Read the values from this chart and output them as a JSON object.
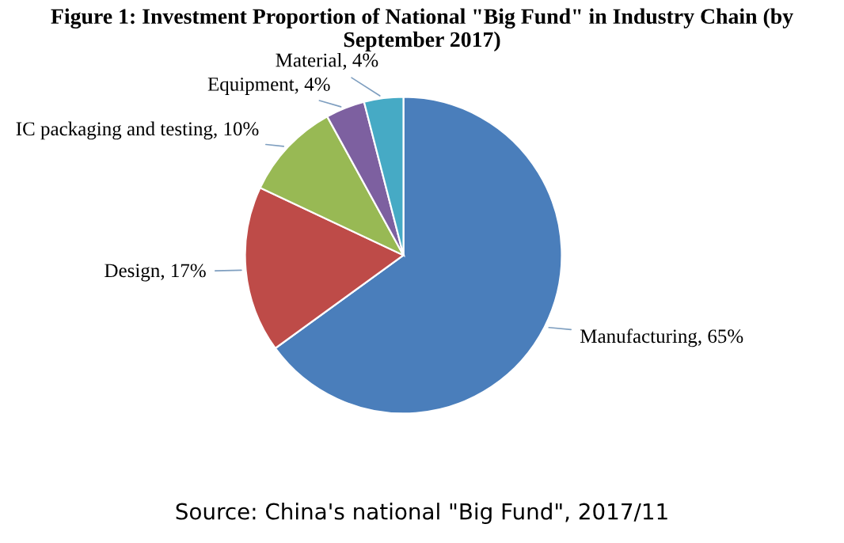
{
  "chart_data": {
    "type": "pie",
    "title": "Figure 1: Investment Proportion of National \"Big Fund\" in Industry Chain (by September 2017)",
    "categories": [
      "Manufacturing",
      "Design",
      "IC packaging and testing",
      "Equipment",
      "Material"
    ],
    "values": [
      65,
      17,
      10,
      4,
      4
    ],
    "value_labels": [
      "65%",
      "17%",
      "10%",
      "4%",
      "4%"
    ],
    "colors": [
      "#4a7ebb",
      "#be4b48",
      "#98b954",
      "#7d60a0",
      "#46aac5"
    ],
    "legend": false,
    "annotations": [
      "Source: China's national \"Big Fund\", 2017/11"
    ]
  }
}
